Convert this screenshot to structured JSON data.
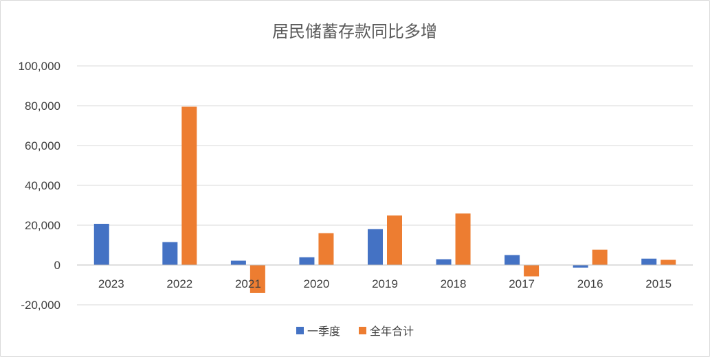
{
  "chart_data": {
    "type": "bar",
    "title": "居民储蓄存款同比多增",
    "categories": [
      "2023",
      "2022",
      "2021",
      "2020",
      "2019",
      "2018",
      "2017",
      "2016",
      "2015"
    ],
    "series": [
      {
        "name": "一季度",
        "color": "#4472C4",
        "values": [
          20700,
          11500,
          2200,
          3900,
          18000,
          2900,
          5000,
          -1300,
          3200
        ]
      },
      {
        "name": "全年合计",
        "color": "#ED7D31",
        "values": [
          0,
          79500,
          -14100,
          16000,
          24900,
          25900,
          -5700,
          7700,
          2600
        ]
      }
    ],
    "ylim": [
      -20000,
      100000
    ],
    "yticks": [
      {
        "value": 100000,
        "label": "100,000"
      },
      {
        "value": 80000,
        "label": "80,000"
      },
      {
        "value": 60000,
        "label": "60,000"
      },
      {
        "value": 40000,
        "label": "40,000"
      },
      {
        "value": 20000,
        "label": "20,000"
      },
      {
        "value": 0,
        "label": "0"
      },
      {
        "value": -20000,
        "label": "-20,000"
      }
    ],
    "grid": true,
    "legend": "bottom"
  }
}
